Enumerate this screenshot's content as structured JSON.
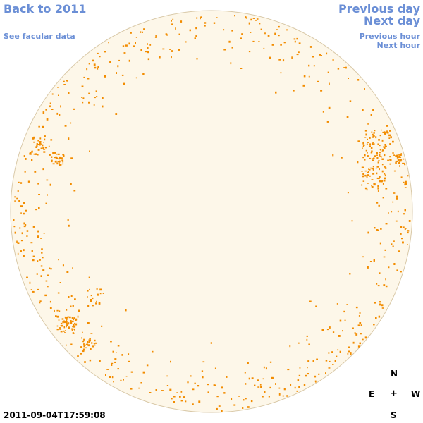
{
  "nav": {
    "back_label": "Back to 2011",
    "facular_label": "See facular data",
    "prev_day_label": "Previous day",
    "next_day_label": "Next day",
    "prev_hour_label": "Previous hour",
    "next_hour_label": "Next hour"
  },
  "compass": {
    "north": "N",
    "east": "E",
    "west": "W",
    "south": "S",
    "center": "+"
  },
  "timestamp": "2011-09-04T17:59:08",
  "colors": {
    "disk_fill": "#fdf7e9",
    "disk_edge": "#d9c9a8",
    "facula": "#f28c00",
    "link": "#6b8fd6"
  }
}
